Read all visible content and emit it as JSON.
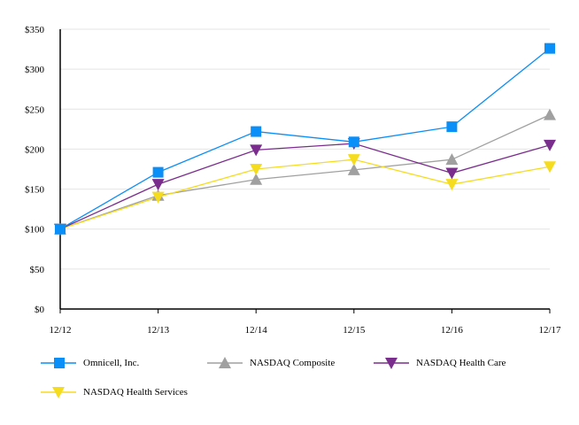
{
  "chart_data": {
    "type": "line",
    "categories": [
      "12/12",
      "12/13",
      "12/14",
      "12/15",
      "12/16",
      "12/17"
    ],
    "yticks": [
      "$0",
      "$50",
      "$100",
      "$150",
      "$200",
      "$250",
      "$300",
      "$350"
    ],
    "ylim": [
      0,
      350
    ],
    "grid": true,
    "legend_position": "bottom",
    "series": [
      {
        "name": "Omnicell, Inc.",
        "marker": "square",
        "color": "#0a8ef7",
        "values": [
          100,
          171,
          222,
          209,
          228,
          326
        ]
      },
      {
        "name": "NASDAQ Composite",
        "marker": "triangle-up",
        "color": "#a0a0a0",
        "values": [
          100,
          142,
          162,
          174,
          187,
          243
        ]
      },
      {
        "name": "NASDAQ Health Care",
        "marker": "triangle-down",
        "color": "#7b2d8e",
        "values": [
          100,
          156,
          199,
          207,
          170,
          205
        ]
      },
      {
        "name": "NASDAQ Health Services",
        "marker": "triangle-down",
        "color": "#f5dc1e",
        "values": [
          100,
          140,
          175,
          187,
          156,
          178
        ]
      }
    ]
  }
}
